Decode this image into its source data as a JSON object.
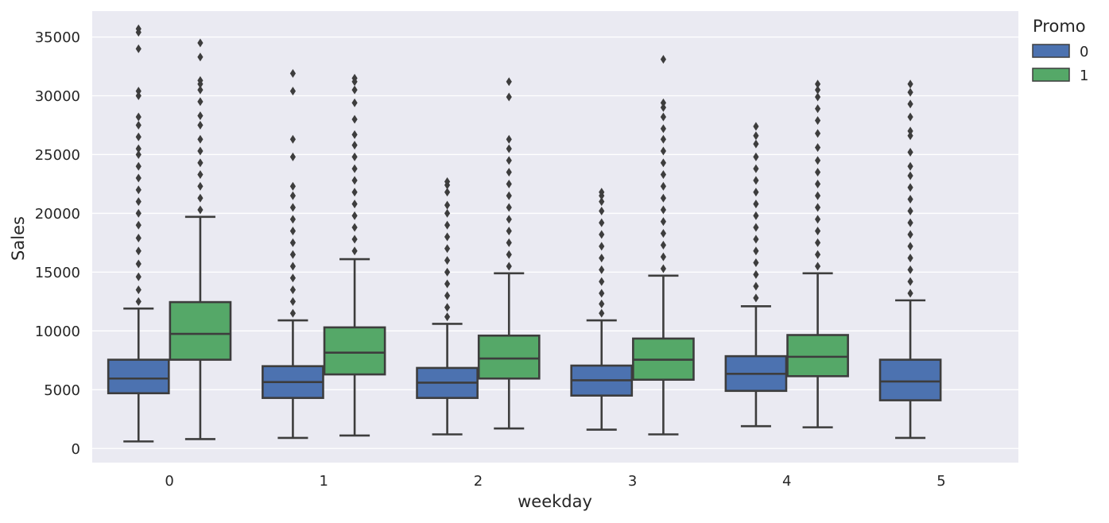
{
  "chart_data": {
    "type": "box",
    "xlabel": "weekday",
    "ylabel": "Sales",
    "categories": [
      "0",
      "1",
      "2",
      "3",
      "4",
      "5"
    ],
    "ylim": [
      -1200,
      37200
    ],
    "yticks": [
      0,
      5000,
      10000,
      15000,
      20000,
      25000,
      30000,
      35000
    ],
    "grid": true,
    "legend": {
      "title": "Promo",
      "placement": "outside-top-right"
    },
    "series": [
      {
        "name": "0",
        "color": "#4c72b0",
        "boxes": [
          {
            "category": "0",
            "min": 600,
            "q1": 4700,
            "median": 5950,
            "q3": 7550,
            "max": 11900,
            "outliers": [
              12500,
              13500,
              14600,
              15700,
              16800,
              17900,
              19000,
              20000,
              21000,
              22000,
              23000,
              24000,
              25000,
              25500,
              26500,
              27500,
              28200,
              30000,
              30400,
              34000,
              35400,
              35700
            ]
          },
          {
            "category": "1",
            "min": 900,
            "q1": 4300,
            "median": 5650,
            "q3": 7000,
            "max": 10900,
            "outliers": [
              11500,
              12500,
              13500,
              14500,
              15500,
              16500,
              17500,
              18500,
              19500,
              20500,
              21500,
              22300,
              24800,
              26300,
              30400,
              31900
            ]
          },
          {
            "category": "2",
            "min": 1200,
            "q1": 4300,
            "median": 5600,
            "q3": 6850,
            "max": 10600,
            "outliers": [
              11200,
              12000,
              13000,
              14000,
              15000,
              16000,
              17000,
              18000,
              19000,
              20000,
              20700,
              21800,
              22400,
              22700
            ]
          },
          {
            "category": "3",
            "min": 1600,
            "q1": 4500,
            "median": 5800,
            "q3": 7050,
            "max": 10900,
            "outliers": [
              11500,
              12300,
              13200,
              14200,
              15200,
              16200,
              17200,
              18200,
              19200,
              20200,
              21000,
              21500,
              21800
            ]
          },
          {
            "category": "4",
            "min": 1900,
            "q1": 4900,
            "median": 6350,
            "q3": 7850,
            "max": 12100,
            "outliers": [
              12800,
              13800,
              14800,
              15800,
              16800,
              17800,
              18800,
              19800,
              20800,
              21800,
              22800,
              23800,
              24800,
              25900,
              26600,
              27400
            ]
          },
          {
            "category": "5",
            "min": 900,
            "q1": 4100,
            "median": 5700,
            "q3": 7550,
            "max": 12600,
            "outliers": [
              13200,
              14200,
              15200,
              16200,
              17200,
              18200,
              19200,
              20200,
              21200,
              22200,
              23200,
              24000,
              25200,
              26600,
              27000,
              28200,
              29300,
              30300,
              31000
            ]
          }
        ]
      },
      {
        "name": "1",
        "color": "#55a868",
        "boxes": [
          {
            "category": "0",
            "min": 800,
            "q1": 7550,
            "median": 9750,
            "q3": 12450,
            "max": 19700,
            "outliers": [
              20300,
              21300,
              22300,
              23300,
              24300,
              25300,
              26300,
              27500,
              28300,
              29500,
              30500,
              31000,
              31300,
              33300,
              34500
            ]
          },
          {
            "category": "1",
            "min": 1100,
            "q1": 6300,
            "median": 8150,
            "q3": 10300,
            "max": 16100,
            "outliers": [
              16800,
              17800,
              18800,
              19800,
              20800,
              21800,
              22800,
              23800,
              24800,
              25800,
              26700,
              28000,
              29400,
              30500,
              31200,
              31500
            ]
          },
          {
            "category": "2",
            "min": 1700,
            "q1": 5950,
            "median": 7650,
            "q3": 9600,
            "max": 14900,
            "outliers": [
              15500,
              16500,
              17500,
              18500,
              19500,
              20500,
              21500,
              22500,
              23500,
              24500,
              25500,
              26300,
              29900,
              31200
            ]
          },
          {
            "category": "3",
            "min": 1200,
            "q1": 5850,
            "median": 7550,
            "q3": 9350,
            "max": 14700,
            "outliers": [
              15300,
              16300,
              17300,
              18300,
              19300,
              20300,
              21300,
              22300,
              23300,
              24300,
              25300,
              26300,
              27200,
              28200,
              29000,
              29400,
              33100
            ]
          },
          {
            "category": "4",
            "min": 1800,
            "q1": 6150,
            "median": 7800,
            "q3": 9650,
            "max": 14900,
            "outliers": [
              15500,
              16500,
              17500,
              18500,
              19500,
              20500,
              21500,
              22500,
              23500,
              24500,
              25600,
              26800,
              27900,
              28900,
              29900,
              30500,
              31000
            ]
          }
        ]
      }
    ]
  }
}
